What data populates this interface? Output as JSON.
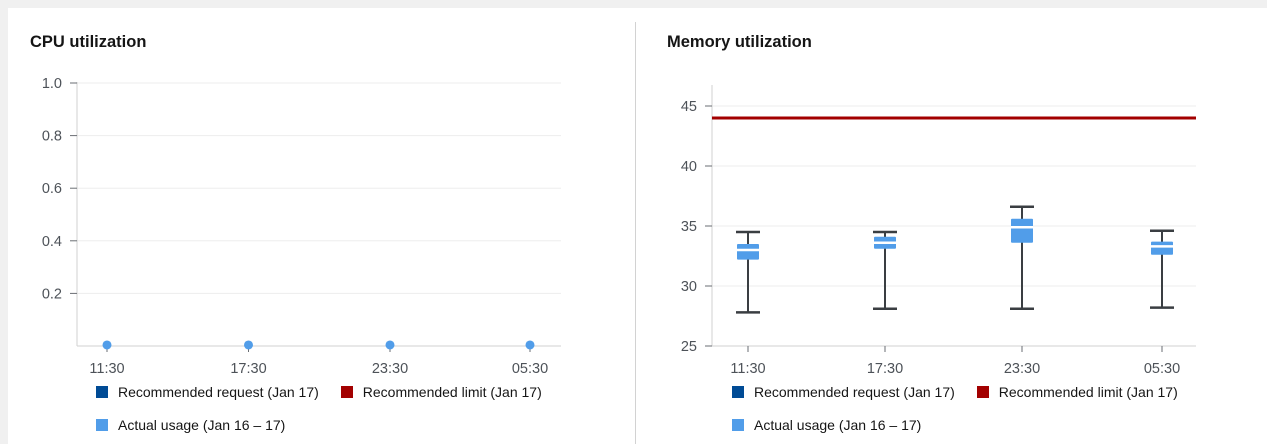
{
  "colors": {
    "request": "#004B95",
    "limit": "#A30000",
    "actual_usage": "#519DE9",
    "grid_line": "#ededed",
    "axis_line": "#d2d2d2",
    "tick_mark": "#6a6e73",
    "axis_label": "#4d5258",
    "whisker": "#3a3e42",
    "median": "#ffffff",
    "title_text": "#151515",
    "divider": "#d2d2d2",
    "page_background": "#f0f0f0"
  },
  "chart_data": [
    {
      "type": "scatter",
      "title": "CPU utilization",
      "xlabel": "",
      "ylabel": "",
      "x": [
        "11:30",
        "17:30",
        "23:30",
        "05:30"
      ],
      "series": [
        {
          "name": "Actual usage (Jan 16 – 17)",
          "values": [
            0.004,
            0.004,
            0.004,
            0.004
          ]
        }
      ],
      "ylim": [
        0,
        1.0
      ],
      "y_ticks": [
        0.2,
        0.4,
        0.6,
        0.8,
        1.0
      ],
      "y_tick_labels": [
        "0.2",
        "0.4",
        "0.6",
        "0.8",
        "1.0"
      ],
      "grid": true,
      "legend_position": "bottom",
      "legend": [
        {
          "label": "Recommended request (Jan 17)",
          "color": "#004B95"
        },
        {
          "label": "Recommended limit (Jan 17)",
          "color": "#A30000"
        },
        {
          "label": "Actual usage (Jan 16 – 17)",
          "color": "#519DE9"
        }
      ]
    },
    {
      "type": "boxplot",
      "title": "Memory utilization",
      "xlabel": "",
      "ylabel": "",
      "x": [
        "11:30",
        "17:30",
        "23:30",
        "05:30"
      ],
      "boxes": [
        {
          "low": 27.8,
          "q1": 32.2,
          "median": 33.0,
          "q3": 33.5,
          "high": 34.5
        },
        {
          "low": 28.1,
          "q1": 33.1,
          "median": 33.6,
          "q3": 34.1,
          "high": 34.5
        },
        {
          "low": 28.1,
          "q1": 33.6,
          "median": 34.9,
          "q3": 35.6,
          "high": 36.6
        },
        {
          "low": 28.2,
          "q1": 32.6,
          "median": 33.3,
          "q3": 33.7,
          "high": 34.6
        }
      ],
      "limit_line": {
        "label": "Recommended limit (Jan 17)",
        "value": 44
      },
      "ylim": [
        25,
        46.8
      ],
      "y_ticks": [
        25,
        30,
        35,
        40,
        45
      ],
      "y_tick_labels": [
        "25",
        "30",
        "35",
        "40",
        "45"
      ],
      "grid": true,
      "legend_position": "bottom",
      "legend": [
        {
          "label": "Recommended request (Jan 17)",
          "color": "#004B95"
        },
        {
          "label": "Recommended limit (Jan 17)",
          "color": "#A30000"
        },
        {
          "label": "Actual usage (Jan 16 – 17)",
          "color": "#519DE9"
        }
      ]
    }
  ]
}
